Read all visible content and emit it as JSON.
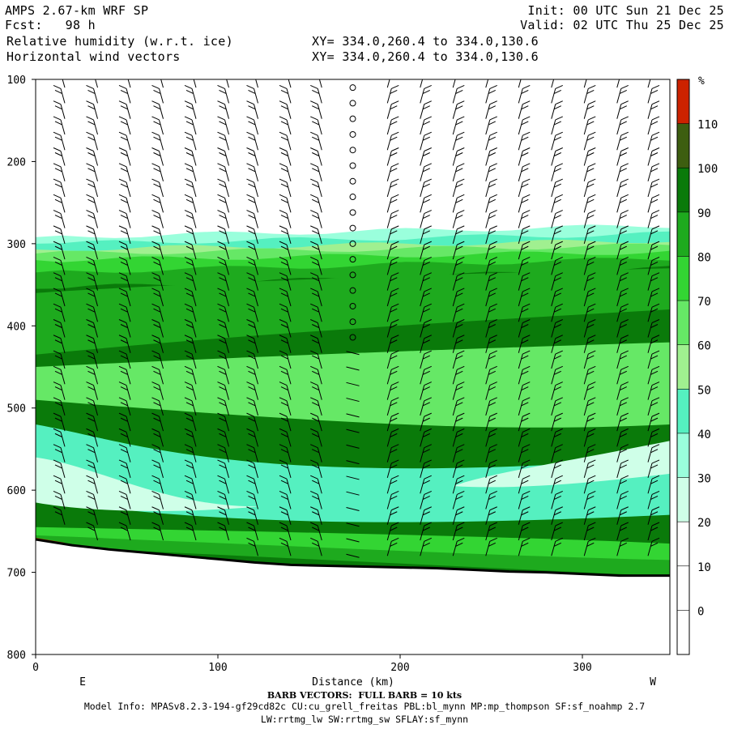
{
  "header": {
    "model_title": "AMPS 2.67-km WRF SP",
    "forecast": "Fcst:   98 h",
    "field1": "Relative humidity (w.r.t. ice)",
    "field2": "Horizontal wind vectors",
    "init": "Init: 00 UTC Sun 21 Dec 25",
    "valid": "Valid: 02 UTC Thu 25 Dec 25",
    "xy1": "XY= 334.0,260.4 to 334.0,130.6",
    "xy2": "XY= 334.0,260.4 to 334.0,130.6"
  },
  "footer": {
    "barb_note": "BARB VECTORS:  FULL BARB = 10 kts",
    "model_info": "Model Info: MPASv8.2.3-194-gf29cd82c CU:cu_grell_freitas PBL:bl_mynn MP:mp_thompson SF:sf_noahmp 2.7",
    "model_info2": "LW:rrtmg_lw SW:rrtmg_sw SFLAY:sf_mynn"
  },
  "chart_data": {
    "type": "heatmap",
    "xlabel": "Distance (km)",
    "ylabel": "",
    "x_ticks": [
      0,
      100,
      200,
      300
    ],
    "y_ticks": [
      100,
      200,
      300,
      400,
      500,
      600,
      700,
      800
    ],
    "xlim": [
      0,
      348
    ],
    "ylim": [
      800,
      100
    ],
    "end_labels": {
      "left": "E",
      "right": "W"
    },
    "colorbar": {
      "unit": "%",
      "levels": [
        0,
        10,
        20,
        30,
        40,
        50,
        60,
        70,
        80,
        90,
        100,
        110
      ],
      "colors": [
        "#ffffff",
        "#ffffff",
        "#ffffff",
        "#cfffe8",
        "#9affdc",
        "#55f0c0",
        "#a0f090",
        "#66e866",
        "#33d533",
        "#1eaa1e",
        "#0a7a0a",
        "#3d5e10",
        "#cc2200"
      ]
    },
    "rh_layers": [
      {
        "level": 30,
        "top_left": 292,
        "top_right": 278
      },
      {
        "level": 40,
        "top_left": 300,
        "top_right": 288
      },
      {
        "level": 50,
        "top_left": 307,
        "top_right": 296
      },
      {
        "level": 60,
        "top_left": 312,
        "top_right": 302
      },
      {
        "level": 70,
        "top_left": 320,
        "top_right": 310
      },
      {
        "level": 80,
        "top_left": 335,
        "top_right": 318
      },
      {
        "level": 90,
        "top_left": 355,
        "top_right": 330
      }
    ],
    "terrain_pressure": {
      "x": [
        0,
        20,
        40,
        60,
        80,
        100,
        120,
        140,
        160,
        180,
        200,
        220,
        240,
        260,
        280,
        300,
        320,
        348
      ],
      "p": [
        660,
        667,
        672,
        676,
        680,
        684,
        688,
        691,
        692,
        693,
        694,
        695,
        697,
        699,
        700,
        702,
        704,
        704
      ]
    },
    "wind_profile_columns_km": [
      16,
      34,
      52,
      70,
      88,
      106,
      122,
      140,
      157,
      174,
      193,
      211,
      229,
      247,
      265,
      283,
      301,
      319,
      336
    ]
  }
}
